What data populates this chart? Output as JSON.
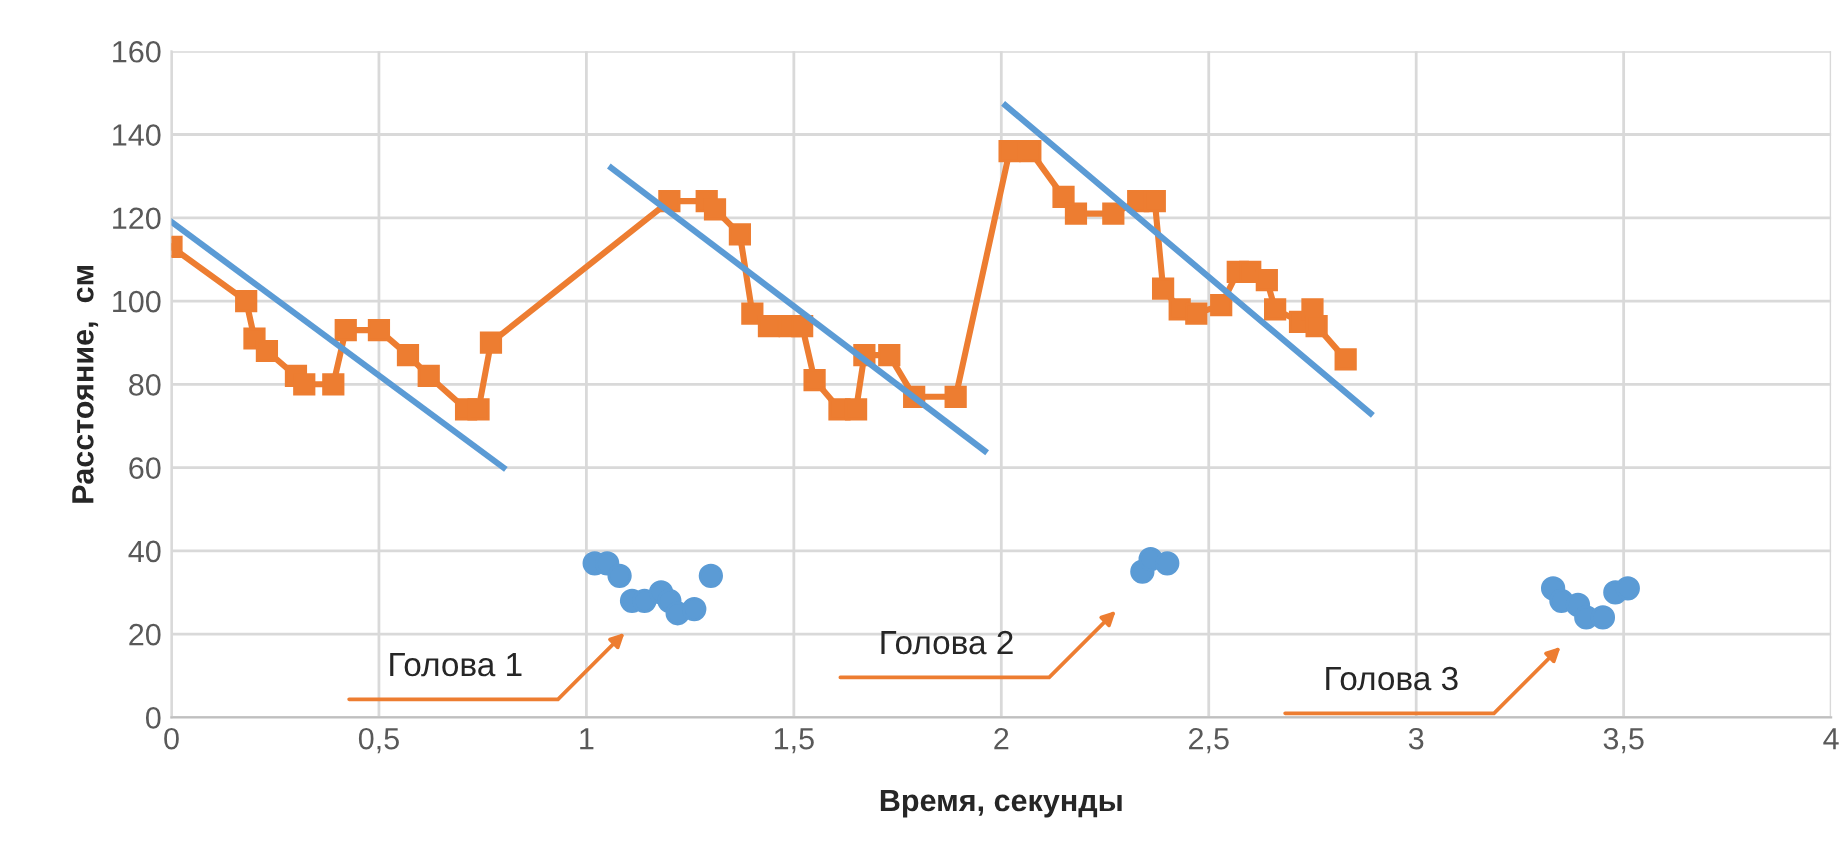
{
  "chart_data": {
    "type": "line",
    "xlabel": "Время, секунды",
    "ylabel": "Расстояние,  см",
    "xlim": [
      0,
      4
    ],
    "ylim": [
      0,
      160
    ],
    "xticks": [
      0,
      {
        "value": 0.5,
        "label": "0,5"
      },
      1,
      {
        "value": 1.5,
        "label": "1,5"
      },
      2,
      {
        "value": 2.5,
        "label": "2,5"
      },
      3,
      {
        "value": 3.5,
        "label": "3,5"
      },
      4
    ],
    "yticks": [
      0,
      20,
      40,
      60,
      80,
      100,
      120,
      140,
      160
    ],
    "grid": true,
    "legend": false,
    "series": [
      {
        "color": "#ed7d31",
        "marker": "square",
        "x": [
          0,
          0.18,
          0.2,
          0.23,
          0.3,
          0.32,
          0.39,
          0.42,
          0.5,
          0.57,
          0.62,
          0.71,
          0.74,
          0.77,
          1.2,
          1.29,
          1.31,
          1.37,
          1.4,
          1.44,
          1.49,
          1.52,
          1.55,
          1.61,
          1.65,
          1.67,
          1.73,
          1.79,
          1.89,
          2.02,
          2.07,
          2.15,
          2.18,
          2.27,
          2.33,
          2.37,
          2.39,
          2.43,
          2.47,
          2.53,
          2.57,
          2.6,
          2.64,
          2.66,
          2.72,
          2.75,
          2.76,
          2.83
        ],
        "values": [
          113,
          100,
          91,
          88,
          82,
          80,
          80,
          93,
          93,
          87,
          82,
          74,
          74,
          90,
          124,
          124,
          122,
          116,
          97,
          94,
          94,
          94,
          81,
          74,
          74,
          87,
          87,
          77,
          77,
          136,
          136,
          125,
          121,
          121,
          124,
          124,
          103,
          98,
          97,
          99,
          107,
          107,
          105,
          98,
          95,
          98,
          94,
          86
        ]
      },
      {
        "color": "#5b9bd5",
        "marker": "none",
        "x": [
          0,
          0.8
        ],
        "values": [
          119,
          60
        ]
      },
      {
        "color": "#5b9bd5",
        "marker": "none",
        "x": [
          1.06,
          1.96
        ],
        "values": [
          132,
          64
        ]
      },
      {
        "color": "#5b9bd5",
        "marker": "none",
        "x": [
          2.01,
          2.89
        ],
        "values": [
          147,
          73
        ]
      },
      {
        "type": "scatter",
        "color": "#5b9bd5",
        "marker": "circle",
        "x": [
          1.02,
          1.05,
          1.08,
          1.11,
          1.14,
          1.18,
          1.2,
          1.22,
          1.26,
          1.3,
          2.34,
          2.36,
          2.4,
          3.33,
          3.35,
          3.39,
          3.41,
          3.45,
          3.48,
          3.51
        ],
        "values": [
          37,
          37,
          34,
          28,
          28,
          30,
          28,
          25,
          26,
          34,
          35,
          38,
          37,
          31,
          28,
          27,
          24,
          24,
          30,
          31
        ]
      }
    ],
    "annotations": [
      "Голова 1",
      "Голова 2",
      "Голова 3"
    ]
  }
}
